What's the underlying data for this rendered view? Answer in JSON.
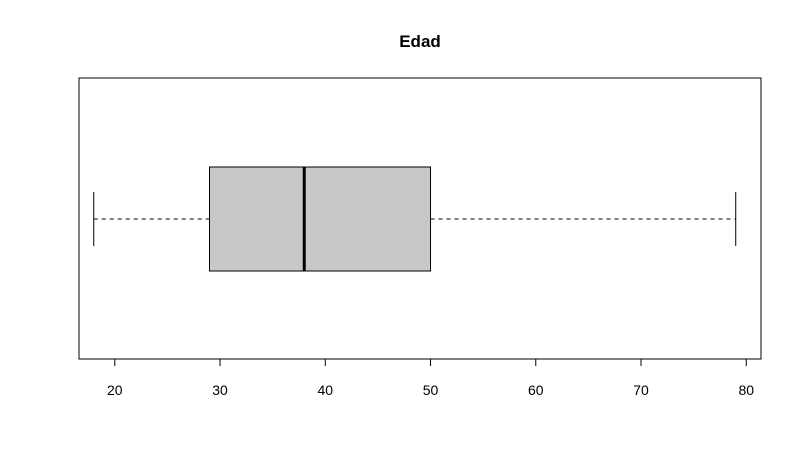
{
  "chart_data": {
    "type": "boxplot",
    "orientation": "horizontal",
    "title": "Edad",
    "xlabel": "",
    "ylabel": "",
    "xlim": [
      16.6,
      81.4
    ],
    "ticks": [
      20,
      30,
      40,
      50,
      60,
      70,
      80
    ],
    "tick_labels": [
      "20",
      "30",
      "40",
      "50",
      "60",
      "70",
      "80"
    ],
    "stats": {
      "min": 18,
      "q1": 29,
      "median": 38,
      "q3": 50,
      "max": 79
    },
    "box_fill": "#c8c8c8",
    "line_color": "#000000"
  }
}
